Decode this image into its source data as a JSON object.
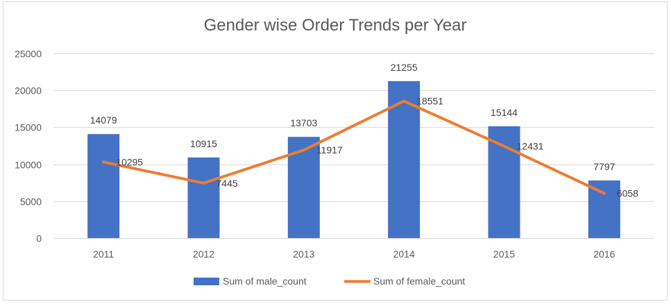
{
  "chart_data": {
    "type": "bar",
    "title": "Gender wise Order Trends per Year",
    "categories": [
      "2011",
      "2012",
      "2013",
      "2014",
      "2015",
      "2016"
    ],
    "ylim": [
      0,
      25000
    ],
    "yticks": [
      0,
      5000,
      10000,
      15000,
      20000,
      25000
    ],
    "grid": true,
    "legend_position": "bottom",
    "series": [
      {
        "name": "Sum of male_count",
        "type": "bar",
        "color": "#4472C4",
        "values": [
          14079,
          10915,
          13703,
          21255,
          15144,
          7797
        ]
      },
      {
        "name": "Sum of female_count",
        "type": "line",
        "color": "#ED7D31",
        "values": [
          10295,
          7445,
          11917,
          18551,
          12431,
          6058
        ]
      }
    ]
  }
}
